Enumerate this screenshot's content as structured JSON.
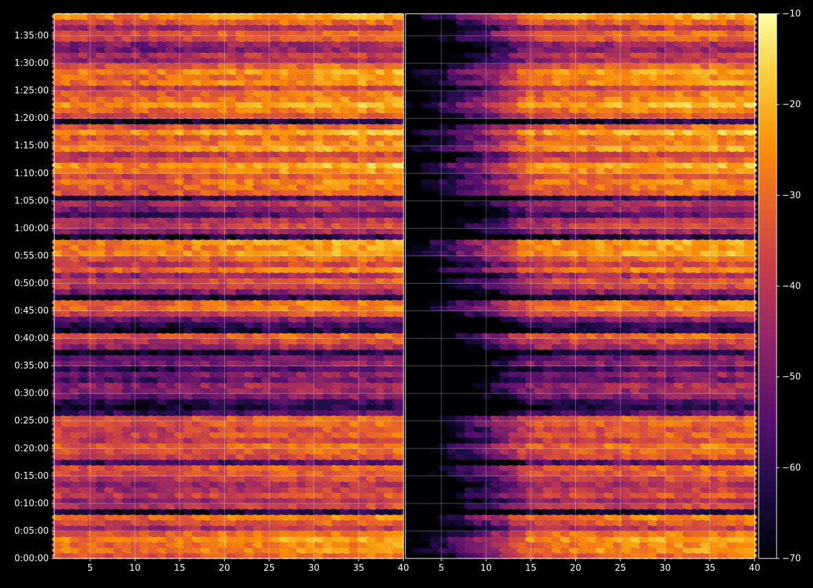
{
  "chart_data": {
    "type": "heatmap",
    "title": "",
    "colormap": "inferno",
    "background": "#000000",
    "text_color": "#ffffff",
    "grid": true,
    "grid_color": "#ffffff",
    "colorbar": {
      "position": "right",
      "range": [
        -70,
        -10
      ],
      "ticks": [
        -10,
        -20,
        -30,
        -40,
        -50,
        -60,
        -70
      ],
      "tick_labels": [
        "−10",
        "−20",
        "−30",
        "−40",
        "−50",
        "−60",
        "−70"
      ]
    },
    "panels": [
      {
        "name": "left",
        "xlim": [
          1,
          40
        ],
        "x_ticks": [
          5,
          10,
          15,
          20,
          25,
          30,
          35,
          40
        ],
        "x_tick_labels": [
          "5",
          "10",
          "15",
          "20",
          "25",
          "30",
          "35",
          "40"
        ],
        "ylim": [
          0,
          99
        ],
        "y_ticks": [
          0,
          5,
          10,
          15,
          20,
          25,
          30,
          35,
          40,
          45,
          50,
          55,
          60,
          65,
          70,
          75,
          80,
          85,
          90,
          95
        ],
        "y_tick_labels": [
          "0:00:00",
          "0:05:00",
          "0:10:00",
          "0:15:00",
          "0:20:00",
          "0:25:00",
          "0:30:00",
          "0:35:00",
          "0:40:00",
          "0:45:00",
          "0:50:00",
          "0:55:00",
          "1:00:00",
          "1:05:00",
          "1:10:00",
          "1:15:00",
          "1:20:00",
          "1:25:00",
          "1:30:00",
          "1:35:00"
        ]
      },
      {
        "name": "right",
        "xlim": [
          1,
          40
        ],
        "x_ticks": [
          5,
          10,
          15,
          20,
          25,
          30,
          35,
          40
        ],
        "x_tick_labels": [
          "5",
          "10",
          "15",
          "20",
          "25",
          "30",
          "35",
          "40"
        ],
        "ylim": [
          0,
          99
        ]
      }
    ],
    "rows_minutes": 99,
    "cols": 40,
    "row_profile_db": [
      -34,
      -28,
      -30,
      -26,
      -32,
      -44,
      -36,
      -30,
      -66,
      -40,
      -46,
      -38,
      -42,
      -46,
      -40,
      -36,
      -34,
      -58,
      -38,
      -34,
      -32,
      -40,
      -36,
      -38,
      -34,
      -34,
      -58,
      -66,
      -62,
      -52,
      -48,
      -46,
      -56,
      -50,
      -60,
      -50,
      -54,
      -66,
      -46,
      -40,
      -34,
      -66,
      -62,
      -52,
      -38,
      -30,
      -32,
      -66,
      -50,
      -40,
      -36,
      -46,
      -30,
      -40,
      -34,
      -26,
      -28,
      -26,
      -66,
      -48,
      -40,
      -44,
      -58,
      -50,
      -44,
      -62,
      -34,
      -32,
      -30,
      -36,
      -28,
      -24,
      -36,
      -40,
      -26,
      -30,
      -32,
      -24,
      -34,
      -66,
      -36,
      -30,
      -24,
      -30,
      -32,
      -40,
      -28,
      -30,
      -26,
      -34,
      -46,
      -42,
      -50,
      -48,
      -36,
      -34,
      -44,
      -34,
      -26
    ],
    "col_gain_db": [
      0,
      0,
      -1,
      -1,
      -1,
      -2,
      -1,
      -1,
      -2,
      -2,
      -2,
      -2,
      -1,
      -1,
      0,
      0,
      1,
      1,
      1,
      2,
      2,
      2,
      3,
      3,
      3,
      3,
      4,
      4,
      4,
      4,
      5,
      5,
      5,
      5,
      5,
      5,
      5,
      5,
      5,
      6
    ],
    "right_panel_low_freq_attenuation": true
  }
}
